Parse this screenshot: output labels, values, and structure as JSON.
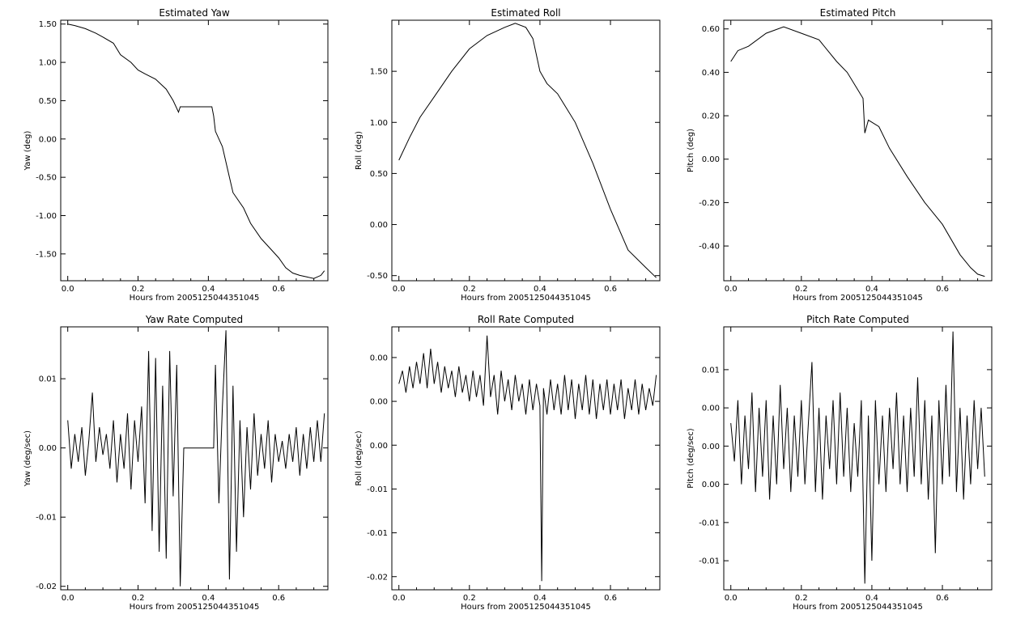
{
  "chart_data": [
    {
      "type": "line",
      "title": "Estimated Yaw",
      "xlabel": "Hours from 2005125044351045",
      "ylabel": "Yaw (deg)",
      "xlim": [
        -0.02,
        0.74
      ],
      "ylim": [
        -1.85,
        1.55
      ],
      "xticks": [
        0.0,
        0.2,
        0.4,
        0.6
      ],
      "xtick_labels": [
        "0.0",
        "0.2",
        "0.4",
        "0.6"
      ],
      "yticks": [
        1.5,
        1.0,
        0.5,
        0.0,
        -0.5,
        -1.0,
        -1.5
      ],
      "ytick_labels": [
        "1.50",
        "1.00",
        "0.50",
        "0.00",
        "-0.50",
        "-1.00",
        "-1.50"
      ],
      "grid": false,
      "series": [
        {
          "color": "#000000",
          "x": [
            0.0,
            0.02,
            0.05,
            0.08,
            0.1,
            0.13,
            0.15,
            0.18,
            0.2,
            0.22,
            0.25,
            0.28,
            0.3,
            0.315,
            0.32,
            0.37,
            0.41,
            0.415,
            0.42,
            0.44,
            0.46,
            0.47,
            0.5,
            0.52,
            0.55,
            0.57,
            0.6,
            0.62,
            0.64,
            0.66,
            0.68,
            0.7,
            0.72,
            0.73
          ],
          "y": [
            1.5,
            1.48,
            1.44,
            1.38,
            1.33,
            1.25,
            1.1,
            1.0,
            0.9,
            0.85,
            0.78,
            0.65,
            0.5,
            0.35,
            0.42,
            0.42,
            0.42,
            0.3,
            0.1,
            -0.1,
            -0.5,
            -0.7,
            -0.9,
            -1.1,
            -1.3,
            -1.4,
            -1.55,
            -1.68,
            -1.75,
            -1.78,
            -1.8,
            -1.82,
            -1.78,
            -1.72
          ]
        }
      ]
    },
    {
      "type": "line",
      "title": "Estimated Roll",
      "xlabel": "Hours from 2005125044351045",
      "ylabel": "Roll (deg)",
      "xlim": [
        -0.02,
        0.74
      ],
      "ylim": [
        -0.55,
        2.0
      ],
      "xticks": [
        0.0,
        0.2,
        0.4,
        0.6
      ],
      "xtick_labels": [
        "0.0",
        "0.2",
        "0.4",
        "0.6"
      ],
      "yticks": [
        1.5,
        1.0,
        0.5,
        0.0,
        -0.5
      ],
      "ytick_labels": [
        "1.50",
        "1.00",
        "0.50",
        "0.00",
        "-0.50"
      ],
      "grid": false,
      "series": [
        {
          "color": "#000000",
          "x": [
            0.0,
            0.03,
            0.06,
            0.1,
            0.15,
            0.2,
            0.25,
            0.3,
            0.33,
            0.36,
            0.38,
            0.4,
            0.42,
            0.45,
            0.5,
            0.55,
            0.6,
            0.65,
            0.7,
            0.73
          ],
          "y": [
            0.63,
            0.85,
            1.05,
            1.25,
            1.5,
            1.72,
            1.85,
            1.93,
            1.97,
            1.93,
            1.82,
            1.5,
            1.38,
            1.28,
            1.0,
            0.6,
            0.15,
            -0.25,
            -0.42,
            -0.52
          ]
        }
      ]
    },
    {
      "type": "line",
      "title": "Estimated Pitch",
      "xlabel": "Hours from 2005125044351045",
      "ylabel": "Pitch (deg)",
      "xlim": [
        -0.02,
        0.74
      ],
      "ylim": [
        -0.56,
        0.64
      ],
      "xticks": [
        0.0,
        0.2,
        0.4,
        0.6
      ],
      "xtick_labels": [
        "0.0",
        "0.2",
        "0.4",
        "0.6"
      ],
      "yticks": [
        0.6,
        0.4,
        0.2,
        0.0,
        -0.2,
        -0.4
      ],
      "ytick_labels": [
        "0.60",
        "0.40",
        "0.20",
        "0.00",
        "-0.20",
        "-0.40"
      ],
      "grid": false,
      "series": [
        {
          "color": "#000000",
          "x": [
            0.0,
            0.02,
            0.05,
            0.1,
            0.15,
            0.2,
            0.25,
            0.3,
            0.33,
            0.36,
            0.375,
            0.38,
            0.39,
            0.42,
            0.45,
            0.5,
            0.55,
            0.6,
            0.65,
            0.68,
            0.7,
            0.72
          ],
          "y": [
            0.45,
            0.5,
            0.52,
            0.58,
            0.61,
            0.58,
            0.55,
            0.45,
            0.4,
            0.32,
            0.28,
            0.12,
            0.18,
            0.15,
            0.05,
            -0.08,
            -0.2,
            -0.3,
            -0.44,
            -0.5,
            -0.53,
            -0.54
          ]
        }
      ]
    },
    {
      "type": "line",
      "title": "Yaw Rate Computed",
      "xlabel": "Hours from 2005125044351045",
      "ylabel": "Yaw (deg/sec)",
      "xlim": [
        -0.02,
        0.74
      ],
      "ylim": [
        -0.0205,
        0.0175
      ],
      "xticks": [
        0.0,
        0.2,
        0.4,
        0.6
      ],
      "xtick_labels": [
        "0.0",
        "0.2",
        "0.4",
        "0.6"
      ],
      "yticks": [
        0.01,
        0.0,
        -0.01,
        -0.02
      ],
      "ytick_labels": [
        "0.01",
        "0.00",
        "-0.01",
        "-0.02"
      ],
      "grid": false,
      "series": [
        {
          "color": "#000000",
          "x": [
            0.0,
            0.01,
            0.02,
            0.03,
            0.04,
            0.05,
            0.06,
            0.07,
            0.08,
            0.09,
            0.1,
            0.11,
            0.12,
            0.13,
            0.14,
            0.15,
            0.16,
            0.17,
            0.18,
            0.19,
            0.2,
            0.21,
            0.22,
            0.23,
            0.24,
            0.25,
            0.26,
            0.27,
            0.28,
            0.29,
            0.3,
            0.31,
            0.32,
            0.33,
            0.36,
            0.4,
            0.415,
            0.42,
            0.43,
            0.44,
            0.45,
            0.46,
            0.47,
            0.48,
            0.49,
            0.5,
            0.51,
            0.52,
            0.53,
            0.54,
            0.55,
            0.56,
            0.57,
            0.58,
            0.59,
            0.6,
            0.61,
            0.62,
            0.63,
            0.64,
            0.65,
            0.66,
            0.67,
            0.68,
            0.69,
            0.7,
            0.71,
            0.72,
            0.73
          ],
          "y": [
            0.004,
            -0.003,
            0.002,
            -0.002,
            0.003,
            -0.004,
            0.001,
            0.008,
            -0.002,
            0.003,
            -0.001,
            0.002,
            -0.003,
            0.004,
            -0.005,
            0.002,
            -0.003,
            0.005,
            -0.006,
            0.004,
            -0.002,
            0.006,
            -0.008,
            0.014,
            -0.012,
            0.013,
            -0.015,
            0.009,
            -0.016,
            0.014,
            -0.007,
            0.012,
            -0.02,
            0.0,
            0.0,
            0.0,
            0.0,
            0.012,
            -0.008,
            0.006,
            0.017,
            -0.019,
            0.009,
            -0.015,
            0.004,
            -0.01,
            0.003,
            -0.006,
            0.005,
            -0.004,
            0.002,
            -0.003,
            0.004,
            -0.005,
            0.002,
            -0.002,
            0.001,
            -0.003,
            0.002,
            -0.002,
            0.003,
            -0.004,
            0.002,
            -0.003,
            0.003,
            -0.002,
            0.004,
            -0.002,
            0.005
          ]
        }
      ]
    },
    {
      "type": "line",
      "title": "Roll Rate Computed",
      "xlabel": "Hours from 2005125044351045",
      "ylabel": "Roll (deg/sec)",
      "xlim": [
        -0.02,
        0.74
      ],
      "ylim": [
        -0.0215,
        0.0085
      ],
      "xticks": [
        0.0,
        0.2,
        0.4,
        0.6
      ],
      "xtick_labels": [
        "0.0",
        "0.2",
        "0.4",
        "0.6"
      ],
      "yticks": [
        0.005,
        0.0,
        -0.005,
        -0.01,
        -0.015,
        -0.02
      ],
      "ytick_labels": [
        "0.00",
        "0.00",
        "0.00",
        "-0.01",
        "-0.01",
        "-0.02"
      ],
      "grid": false,
      "series": [
        {
          "color": "#000000",
          "x": [
            0.0,
            0.01,
            0.02,
            0.03,
            0.04,
            0.05,
            0.06,
            0.07,
            0.08,
            0.09,
            0.1,
            0.11,
            0.12,
            0.13,
            0.14,
            0.15,
            0.16,
            0.17,
            0.18,
            0.19,
            0.2,
            0.21,
            0.22,
            0.23,
            0.24,
            0.25,
            0.26,
            0.27,
            0.28,
            0.29,
            0.3,
            0.31,
            0.32,
            0.33,
            0.34,
            0.35,
            0.36,
            0.37,
            0.38,
            0.39,
            0.4,
            0.405,
            0.41,
            0.42,
            0.43,
            0.44,
            0.45,
            0.46,
            0.47,
            0.48,
            0.49,
            0.5,
            0.51,
            0.52,
            0.53,
            0.54,
            0.55,
            0.56,
            0.57,
            0.58,
            0.59,
            0.6,
            0.61,
            0.62,
            0.63,
            0.64,
            0.65,
            0.66,
            0.67,
            0.68,
            0.69,
            0.7,
            0.71,
            0.72,
            0.73
          ],
          "y": [
            0.002,
            0.0035,
            0.001,
            0.004,
            0.0015,
            0.0045,
            0.002,
            0.0055,
            0.0015,
            0.006,
            0.002,
            0.0045,
            0.001,
            0.004,
            0.0015,
            0.0035,
            0.0005,
            0.004,
            0.001,
            0.003,
            0.0,
            0.0035,
            0.0005,
            0.003,
            -0.0005,
            0.0075,
            0.0005,
            0.003,
            -0.0015,
            0.0035,
            0.0,
            0.0025,
            -0.001,
            0.003,
            0.0,
            0.002,
            -0.0015,
            0.0025,
            -0.001,
            0.002,
            -0.0005,
            -0.0205,
            0.0015,
            -0.0015,
            0.0025,
            -0.001,
            0.002,
            -0.0015,
            0.003,
            -0.001,
            0.0025,
            -0.002,
            0.002,
            -0.001,
            0.003,
            -0.0015,
            0.0025,
            -0.002,
            0.002,
            -0.001,
            0.0025,
            -0.0015,
            0.002,
            -0.001,
            0.0025,
            -0.002,
            0.0015,
            -0.001,
            0.0025,
            -0.0015,
            0.002,
            -0.001,
            0.0015,
            -0.0005,
            0.003
          ]
        }
      ]
    },
    {
      "type": "line",
      "title": "Pitch Rate Computed",
      "xlabel": "Hours from 2005125044351045",
      "ylabel": "Pitch (deg/sec)",
      "xlim": [
        -0.02,
        0.74
      ],
      "ylim": [
        -0.0188,
        0.0156
      ],
      "xticks": [
        0.0,
        0.2,
        0.4,
        0.6
      ],
      "xtick_labels": [
        "0.0",
        "0.2",
        "0.4",
        "0.6"
      ],
      "yticks": [
        0.01,
        0.005,
        0.0,
        -0.005,
        -0.01,
        -0.015
      ],
      "ytick_labels": [
        "0.01",
        "0.00",
        "0.00",
        "0.00",
        "-0.01",
        "-0.01"
      ],
      "grid": false,
      "series": [
        {
          "color": "#000000",
          "x": [
            0.0,
            0.01,
            0.02,
            0.03,
            0.04,
            0.05,
            0.06,
            0.07,
            0.08,
            0.09,
            0.1,
            0.11,
            0.12,
            0.13,
            0.14,
            0.15,
            0.16,
            0.17,
            0.18,
            0.19,
            0.2,
            0.21,
            0.22,
            0.23,
            0.24,
            0.25,
            0.26,
            0.27,
            0.28,
            0.29,
            0.3,
            0.31,
            0.32,
            0.33,
            0.34,
            0.35,
            0.36,
            0.37,
            0.38,
            0.39,
            0.4,
            0.41,
            0.42,
            0.43,
            0.44,
            0.45,
            0.46,
            0.47,
            0.48,
            0.49,
            0.5,
            0.51,
            0.52,
            0.53,
            0.54,
            0.55,
            0.56,
            0.57,
            0.58,
            0.59,
            0.6,
            0.61,
            0.62,
            0.63,
            0.64,
            0.65,
            0.66,
            0.67,
            0.68,
            0.69,
            0.7,
            0.71,
            0.72
          ],
          "y": [
            0.003,
            -0.002,
            0.006,
            -0.005,
            0.004,
            -0.003,
            0.007,
            -0.006,
            0.005,
            -0.004,
            0.006,
            -0.007,
            0.004,
            -0.005,
            0.008,
            -0.003,
            0.005,
            -0.006,
            0.004,
            -0.004,
            0.006,
            -0.005,
            0.003,
            0.011,
            -0.006,
            0.005,
            -0.007,
            0.004,
            -0.003,
            0.006,
            -0.005,
            0.007,
            -0.004,
            0.005,
            -0.006,
            0.003,
            -0.004,
            0.006,
            -0.018,
            0.004,
            -0.015,
            0.006,
            -0.005,
            0.004,
            -0.006,
            0.005,
            -0.003,
            0.007,
            -0.005,
            0.004,
            -0.006,
            0.005,
            -0.004,
            0.009,
            -0.005,
            0.006,
            -0.007,
            0.004,
            -0.014,
            0.006,
            -0.005,
            0.008,
            -0.004,
            0.015,
            -0.006,
            0.005,
            -0.007,
            0.004,
            -0.005,
            0.006,
            -0.003,
            0.005,
            -0.004
          ]
        }
      ]
    }
  ]
}
